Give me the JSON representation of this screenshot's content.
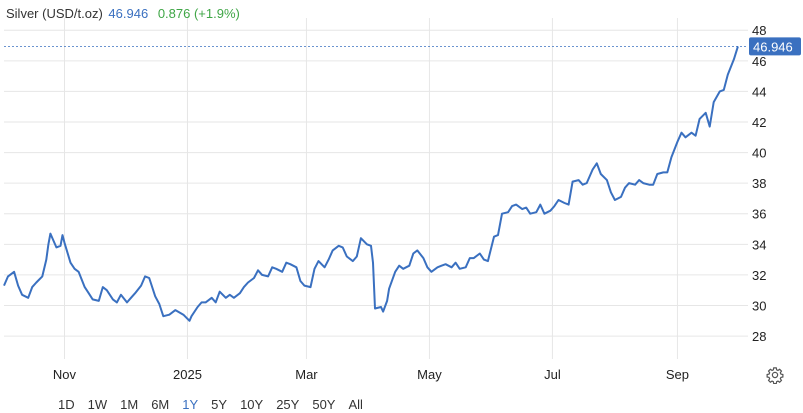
{
  "header": {
    "instrument": "Silver (USD/t.oz)",
    "price": "46.946",
    "change": "0.876 (+1.9%)"
  },
  "last_price_label": "46.946",
  "ranges": [
    "1D",
    "1W",
    "1M",
    "6M",
    "1Y",
    "5Y",
    "10Y",
    "25Y",
    "50Y",
    "All"
  ],
  "active_range": "1Y",
  "icons": {
    "settings": "gear-icon"
  },
  "colors": {
    "line": "#3a70c0",
    "grid": "#e6e6e6",
    "change_positive": "#3fa646",
    "label_bg": "#3a70c0"
  },
  "chart_data": {
    "type": "line",
    "title": "Silver (USD/t.oz)",
    "xlabel": "",
    "ylabel": "",
    "y_axis_position": "right",
    "ylim": [
      26.5,
      48.8
    ],
    "yticks": [
      28,
      30,
      32,
      34,
      36,
      38,
      40,
      42,
      44,
      46,
      48
    ],
    "xlim": [
      "2024-10-02",
      "2025-10-06"
    ],
    "xticks": [
      {
        "label": "Nov",
        "date": "2024-11-01"
      },
      {
        "label": "2025",
        "date": "2025-01-01"
      },
      {
        "label": "Mar",
        "date": "2025-03-01"
      },
      {
        "label": "May",
        "date": "2025-05-01"
      },
      {
        "label": "Jul",
        "date": "2025-07-01"
      },
      {
        "label": "Sep",
        "date": "2025-09-01"
      }
    ],
    "grid": true,
    "last_value": 46.946,
    "series": [
      {
        "name": "Silver",
        "points": [
          [
            "2024-10-02",
            31.3
          ],
          [
            "2024-10-04",
            31.9
          ],
          [
            "2024-10-07",
            32.2
          ],
          [
            "2024-10-09",
            31.3
          ],
          [
            "2024-10-11",
            30.7
          ],
          [
            "2024-10-14",
            30.5
          ],
          [
            "2024-10-16",
            31.2
          ],
          [
            "2024-10-18",
            31.5
          ],
          [
            "2024-10-21",
            31.9
          ],
          [
            "2024-10-23",
            33.0
          ],
          [
            "2024-10-24",
            34.0
          ],
          [
            "2024-10-25",
            34.7
          ],
          [
            "2024-10-28",
            33.8
          ],
          [
            "2024-10-30",
            33.9
          ],
          [
            "2024-10-31",
            34.6
          ],
          [
            "2024-11-01",
            34.1
          ],
          [
            "2024-11-04",
            32.8
          ],
          [
            "2024-11-06",
            32.4
          ],
          [
            "2024-11-08",
            32.2
          ],
          [
            "2024-11-11",
            31.2
          ],
          [
            "2024-11-13",
            30.8
          ],
          [
            "2024-11-15",
            30.4
          ],
          [
            "2024-11-18",
            30.3
          ],
          [
            "2024-11-20",
            31.2
          ],
          [
            "2024-11-22",
            31.0
          ],
          [
            "2024-11-25",
            30.4
          ],
          [
            "2024-11-27",
            30.2
          ],
          [
            "2024-11-29",
            30.7
          ],
          [
            "2024-12-02",
            30.2
          ],
          [
            "2024-12-04",
            30.5
          ],
          [
            "2024-12-06",
            30.8
          ],
          [
            "2024-12-09",
            31.3
          ],
          [
            "2024-12-11",
            31.9
          ],
          [
            "2024-12-13",
            31.8
          ],
          [
            "2024-12-16",
            30.6
          ],
          [
            "2024-12-18",
            30.1
          ],
          [
            "2024-12-20",
            29.3
          ],
          [
            "2024-12-23",
            29.4
          ],
          [
            "2024-12-26",
            29.7
          ],
          [
            "2024-12-30",
            29.4
          ],
          [
            "2025-01-02",
            29.0
          ],
          [
            "2025-01-03",
            29.3
          ],
          [
            "2025-01-06",
            29.9
          ],
          [
            "2025-01-08",
            30.2
          ],
          [
            "2025-01-10",
            30.2
          ],
          [
            "2025-01-13",
            30.5
          ],
          [
            "2025-01-15",
            30.2
          ],
          [
            "2025-01-17",
            30.9
          ],
          [
            "2025-01-20",
            30.5
          ],
          [
            "2025-01-22",
            30.7
          ],
          [
            "2025-01-24",
            30.5
          ],
          [
            "2025-01-27",
            30.8
          ],
          [
            "2025-01-29",
            31.2
          ],
          [
            "2025-01-31",
            31.5
          ],
          [
            "2025-02-03",
            31.8
          ],
          [
            "2025-02-05",
            32.3
          ],
          [
            "2025-02-07",
            32.0
          ],
          [
            "2025-02-10",
            31.9
          ],
          [
            "2025-02-12",
            32.5
          ],
          [
            "2025-02-14",
            32.4
          ],
          [
            "2025-02-17",
            32.2
          ],
          [
            "2025-02-19",
            32.8
          ],
          [
            "2025-02-21",
            32.7
          ],
          [
            "2025-02-24",
            32.5
          ],
          [
            "2025-02-26",
            31.6
          ],
          [
            "2025-02-28",
            31.3
          ],
          [
            "2025-03-03",
            31.2
          ],
          [
            "2025-03-05",
            32.4
          ],
          [
            "2025-03-07",
            32.9
          ],
          [
            "2025-03-10",
            32.5
          ],
          [
            "2025-03-12",
            33.0
          ],
          [
            "2025-03-14",
            33.6
          ],
          [
            "2025-03-17",
            33.9
          ],
          [
            "2025-03-19",
            33.8
          ],
          [
            "2025-03-21",
            33.2
          ],
          [
            "2025-03-24",
            32.9
          ],
          [
            "2025-03-26",
            33.2
          ],
          [
            "2025-03-28",
            34.4
          ],
          [
            "2025-03-31",
            34.0
          ],
          [
            "2025-04-02",
            33.9
          ],
          [
            "2025-04-03",
            32.8
          ],
          [
            "2025-04-04",
            29.8
          ],
          [
            "2025-04-07",
            29.9
          ],
          [
            "2025-04-08",
            29.6
          ],
          [
            "2025-04-10",
            30.3
          ],
          [
            "2025-04-11",
            31.1
          ],
          [
            "2025-04-14",
            32.2
          ],
          [
            "2025-04-16",
            32.6
          ],
          [
            "2025-04-18",
            32.4
          ],
          [
            "2025-04-21",
            32.6
          ],
          [
            "2025-04-23",
            33.4
          ],
          [
            "2025-04-25",
            33.6
          ],
          [
            "2025-04-28",
            33.1
          ],
          [
            "2025-04-30",
            32.5
          ],
          [
            "2025-05-02",
            32.2
          ],
          [
            "2025-05-05",
            32.5
          ],
          [
            "2025-05-07",
            32.6
          ],
          [
            "2025-05-09",
            32.7
          ],
          [
            "2025-05-12",
            32.5
          ],
          [
            "2025-05-14",
            32.8
          ],
          [
            "2025-05-16",
            32.4
          ],
          [
            "2025-05-19",
            32.5
          ],
          [
            "2025-05-21",
            33.1
          ],
          [
            "2025-05-23",
            33.1
          ],
          [
            "2025-05-26",
            33.4
          ],
          [
            "2025-05-28",
            33.0
          ],
          [
            "2025-05-30",
            32.9
          ],
          [
            "2025-06-02",
            34.5
          ],
          [
            "2025-06-04",
            34.6
          ],
          [
            "2025-06-06",
            36.0
          ],
          [
            "2025-06-09",
            36.1
          ],
          [
            "2025-06-11",
            36.5
          ],
          [
            "2025-06-13",
            36.6
          ],
          [
            "2025-06-16",
            36.3
          ],
          [
            "2025-06-18",
            36.4
          ],
          [
            "2025-06-20",
            36.0
          ],
          [
            "2025-06-23",
            36.1
          ],
          [
            "2025-06-25",
            36.6
          ],
          [
            "2025-06-27",
            36.0
          ],
          [
            "2025-06-30",
            36.2
          ],
          [
            "2025-07-02",
            36.5
          ],
          [
            "2025-07-04",
            36.9
          ],
          [
            "2025-07-07",
            36.7
          ],
          [
            "2025-07-09",
            36.6
          ],
          [
            "2025-07-11",
            38.1
          ],
          [
            "2025-07-14",
            38.2
          ],
          [
            "2025-07-16",
            37.9
          ],
          [
            "2025-07-18",
            38.0
          ],
          [
            "2025-07-21",
            38.9
          ],
          [
            "2025-07-23",
            39.3
          ],
          [
            "2025-07-25",
            38.6
          ],
          [
            "2025-07-28",
            38.2
          ],
          [
            "2025-07-30",
            37.4
          ],
          [
            "2025-08-01",
            36.9
          ],
          [
            "2025-08-04",
            37.1
          ],
          [
            "2025-08-06",
            37.7
          ],
          [
            "2025-08-08",
            38.0
          ],
          [
            "2025-08-11",
            37.9
          ],
          [
            "2025-08-13",
            38.2
          ],
          [
            "2025-08-15",
            38.0
          ],
          [
            "2025-08-18",
            37.9
          ],
          [
            "2025-08-20",
            37.9
          ],
          [
            "2025-08-22",
            38.6
          ],
          [
            "2025-08-25",
            38.7
          ],
          [
            "2025-08-27",
            38.7
          ],
          [
            "2025-08-29",
            39.7
          ],
          [
            "2025-09-01",
            40.7
          ],
          [
            "2025-09-03",
            41.3
          ],
          [
            "2025-09-05",
            41.0
          ],
          [
            "2025-09-08",
            41.3
          ],
          [
            "2025-09-10",
            41.1
          ],
          [
            "2025-09-12",
            42.2
          ],
          [
            "2025-09-15",
            42.6
          ],
          [
            "2025-09-17",
            41.7
          ],
          [
            "2025-09-19",
            43.3
          ],
          [
            "2025-09-22",
            44.0
          ],
          [
            "2025-09-24",
            44.1
          ],
          [
            "2025-09-26",
            45.1
          ],
          [
            "2025-09-29",
            46.1
          ],
          [
            "2025-10-01",
            46.946
          ]
        ]
      }
    ]
  }
}
